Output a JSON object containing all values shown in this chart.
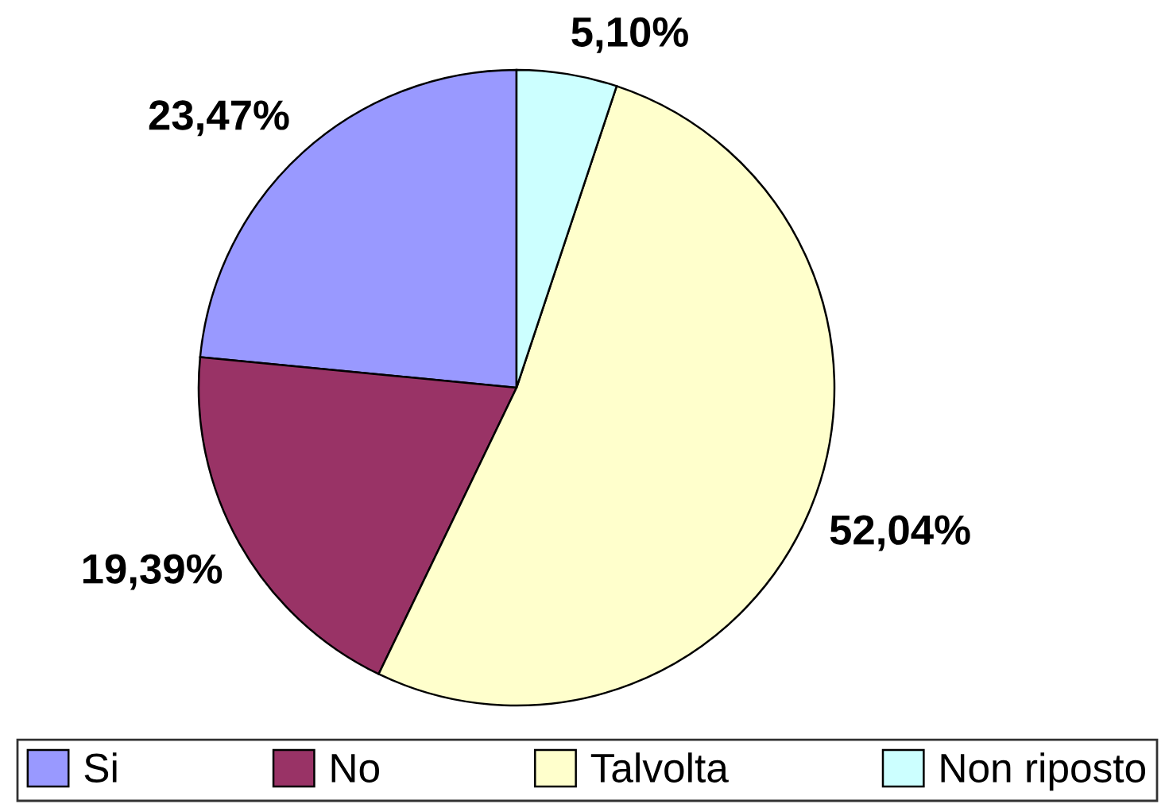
{
  "chart_data": {
    "type": "pie",
    "categories": [
      "Si",
      "No",
      "Talvolta",
      "Non riposto"
    ],
    "values": [
      23.47,
      19.39,
      52.04,
      5.1
    ],
    "colors": [
      "#9999ff",
      "#993366",
      "#ffffcc",
      "#ccffff"
    ],
    "value_labels": [
      "23,47%",
      "19,39%",
      "52,04%",
      "5,10%"
    ],
    "legend": "bottom"
  }
}
